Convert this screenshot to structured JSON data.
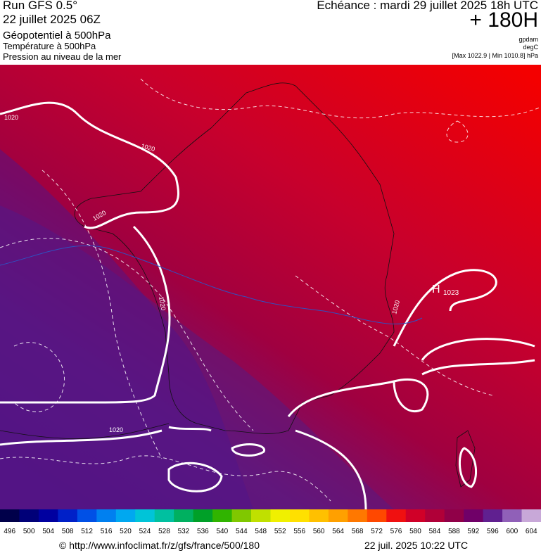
{
  "header": {
    "run": "Run GFS 0.5°",
    "date": "22 juillet 2025 06Z",
    "field1": "Géopotentiel à 500hPa",
    "field2": "Température à 500hPa",
    "field3": "Pression au niveau de la mer",
    "echeance": "Echéance : mardi 29 juillet 2025 18h UTC",
    "lead": "+ 180H",
    "unit1": "gpdam",
    "unit2": "degC",
    "range": "[Max 1022.9 | Min 1010.8] hPa"
  },
  "map": {
    "labels": [
      "1020",
      "1020",
      "1020",
      "1020",
      "1020",
      "1020",
      "H",
      "1023"
    ]
  },
  "legend": {
    "labels": [
      496,
      500,
      504,
      508,
      512,
      516,
      520,
      524,
      528,
      532,
      536,
      540,
      544,
      548,
      552,
      556,
      560,
      564,
      568,
      572,
      576,
      580,
      584,
      588,
      592,
      596,
      600,
      604
    ],
    "colors": [
      "#00004a",
      "#000078",
      "#0000a0",
      "#0020c8",
      "#0050e6",
      "#0080f0",
      "#00a8f0",
      "#00c4d8",
      "#00c0a0",
      "#00b060",
      "#00a028",
      "#30b400",
      "#80c800",
      "#c0e000",
      "#f0f000",
      "#ffe000",
      "#ffc000",
      "#ffa000",
      "#ff7800",
      "#ff4800",
      "#f01010",
      "#d00028",
      "#b00038",
      "#900048",
      "#700068",
      "#602090",
      "#9060b8",
      "#c8a8d8"
    ]
  },
  "footer": {
    "url": "© http://www.infoclimat.fr/z/gfs/france/500/180",
    "stamp": "22 juil. 2025 10:22 UTC"
  }
}
